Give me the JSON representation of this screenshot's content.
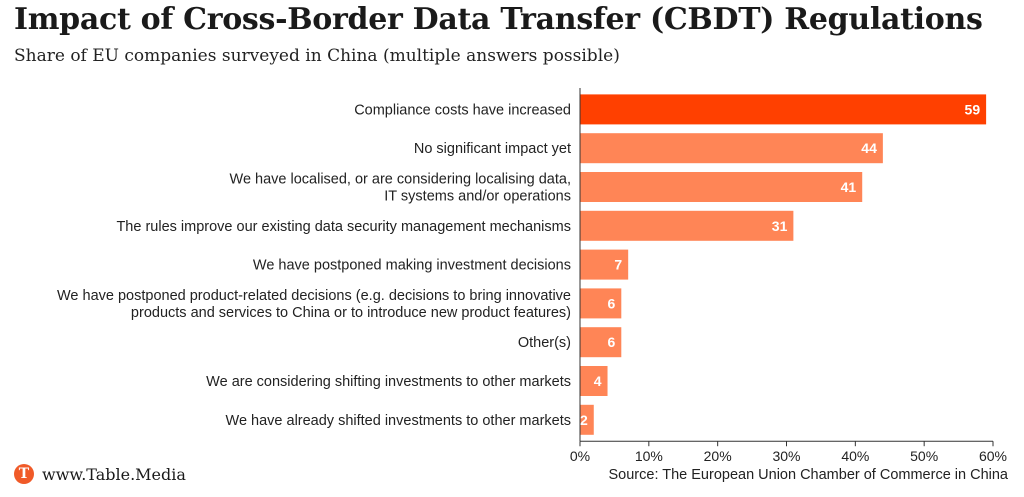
{
  "header": {
    "title": "Impact of Cross-Border Data Transfer (CBDT) Regulations",
    "subtitle": "Share of EU companies surveyed in China (multiple answers possible)"
  },
  "footer": {
    "brand": "www.Table.Media",
    "logo_letter": "T",
    "source": "Source: The European Union Chamber of Commerce in China"
  },
  "colors": {
    "highlight": "#ff4000",
    "bar": "#ff8556",
    "logo": "#f05a28"
  },
  "chart_data": {
    "type": "bar",
    "orientation": "horizontal",
    "categories": [
      [
        "Compliance costs have increased"
      ],
      [
        "No significant impact yet"
      ],
      [
        "We have localised, or are considering localising data,",
        "IT systems and/or operations"
      ],
      [
        "The rules improve our existing data security management mechanisms"
      ],
      [
        "We have postponed making investment decisions"
      ],
      [
        "We have postponed product-related decisions (e.g. decisions to bring innovative",
        "products and services to China or to introduce new product features)"
      ],
      [
        "Other(s)"
      ],
      [
        "We are considering shifting investments to other markets"
      ],
      [
        "We have already shifted investments to other markets"
      ]
    ],
    "values": [
      59,
      44,
      41,
      31,
      7,
      6,
      6,
      4,
      2
    ],
    "xlim": [
      0,
      60
    ],
    "xticks": [
      "0%",
      "10%",
      "20%",
      "30%",
      "40%",
      "50%",
      "60%"
    ],
    "xtick_values": [
      0,
      10,
      20,
      30,
      40,
      50,
      60
    ],
    "highlight_index": 0,
    "grid": false
  }
}
